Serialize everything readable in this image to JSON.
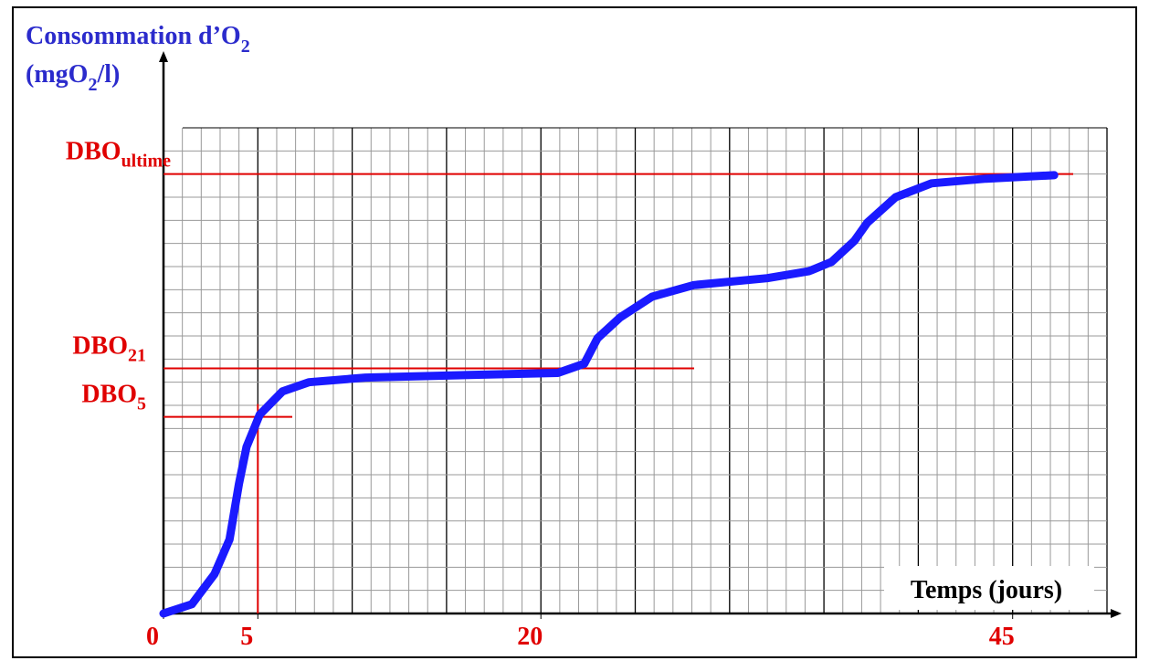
{
  "chart_data": {
    "type": "line",
    "y_label": {
      "line1": [
        "Consommation d’O",
        "2"
      ],
      "line2": [
        "(mgO",
        "2",
        "/l)"
      ]
    },
    "x_label": "Temps (jours)",
    "xlim": [
      0,
      50
    ],
    "ylim": [
      0,
      21
    ],
    "xticks": [
      0,
      5,
      20,
      45
    ],
    "grid": true,
    "series": [
      {
        "color": "#1a1aff",
        "x": [
          0,
          1.5,
          2.7,
          3.5,
          4.0,
          4.4,
          5.1,
          6.3,
          7.7,
          10.7,
          15.5,
          20.9,
          22.3,
          23.0,
          24.2,
          25.9,
          28.1,
          32.0,
          34.2,
          35.4,
          36.6,
          37.3,
          38.8,
          40.7,
          43.6,
          47.2
        ],
        "values": [
          0,
          0.4,
          1.7,
          3.2,
          5.6,
          7.2,
          8.6,
          9.6,
          10.0,
          10.2,
          10.3,
          10.4,
          10.8,
          11.9,
          12.8,
          13.7,
          14.2,
          14.5,
          14.8,
          15.2,
          16.1,
          16.9,
          18.0,
          18.6,
          18.8,
          18.95
        ]
      }
    ],
    "reference_lines": [
      {
        "label": "DBO",
        "subscript": "ultime",
        "value": 19,
        "color": "#e00000"
      },
      {
        "label": "DBO",
        "subscript": "21",
        "value": 10.6,
        "color": "#e00000"
      },
      {
        "label": "DBO",
        "subscript": "5",
        "value": 8.5,
        "x": 5,
        "color": "#e00000"
      }
    ]
  }
}
